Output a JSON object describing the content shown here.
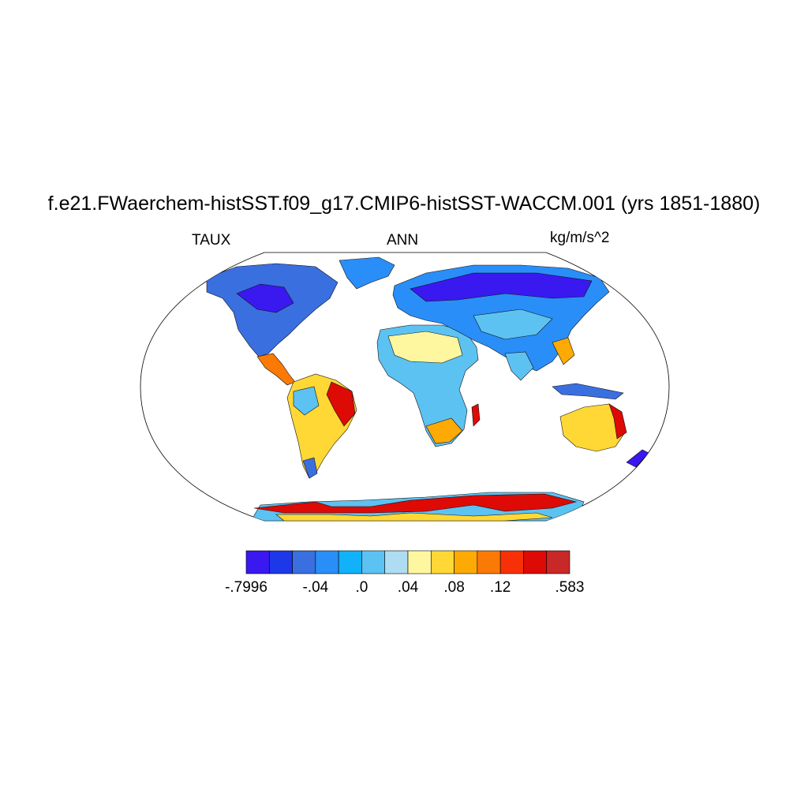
{
  "title": "f.e21.FWaerchem-histSST.f09_g17.CMIP6-histSST-WACCM.001 (yrs 1851-1880)",
  "left_label": "TAUX",
  "center_label": "ANN",
  "right_label": "kg/m/s^2",
  "colorbar": {
    "colors": [
      "#3a18f0",
      "#1d38e8",
      "#3a6fe0",
      "#2a8ef8",
      "#12b2fa",
      "#5cc2f2",
      "#aedcf2",
      "#fff7a0",
      "#ffd835",
      "#fdaa05",
      "#fb7a05",
      "#f83008",
      "#dd0a06",
      "#c82828"
    ],
    "labels": [
      "-.7996",
      "-.04",
      ".0",
      ".04",
      ".08",
      ".12",
      ".583"
    ],
    "label_boundaries": [
      0,
      3,
      5,
      7,
      9,
      11,
      14
    ]
  }
}
